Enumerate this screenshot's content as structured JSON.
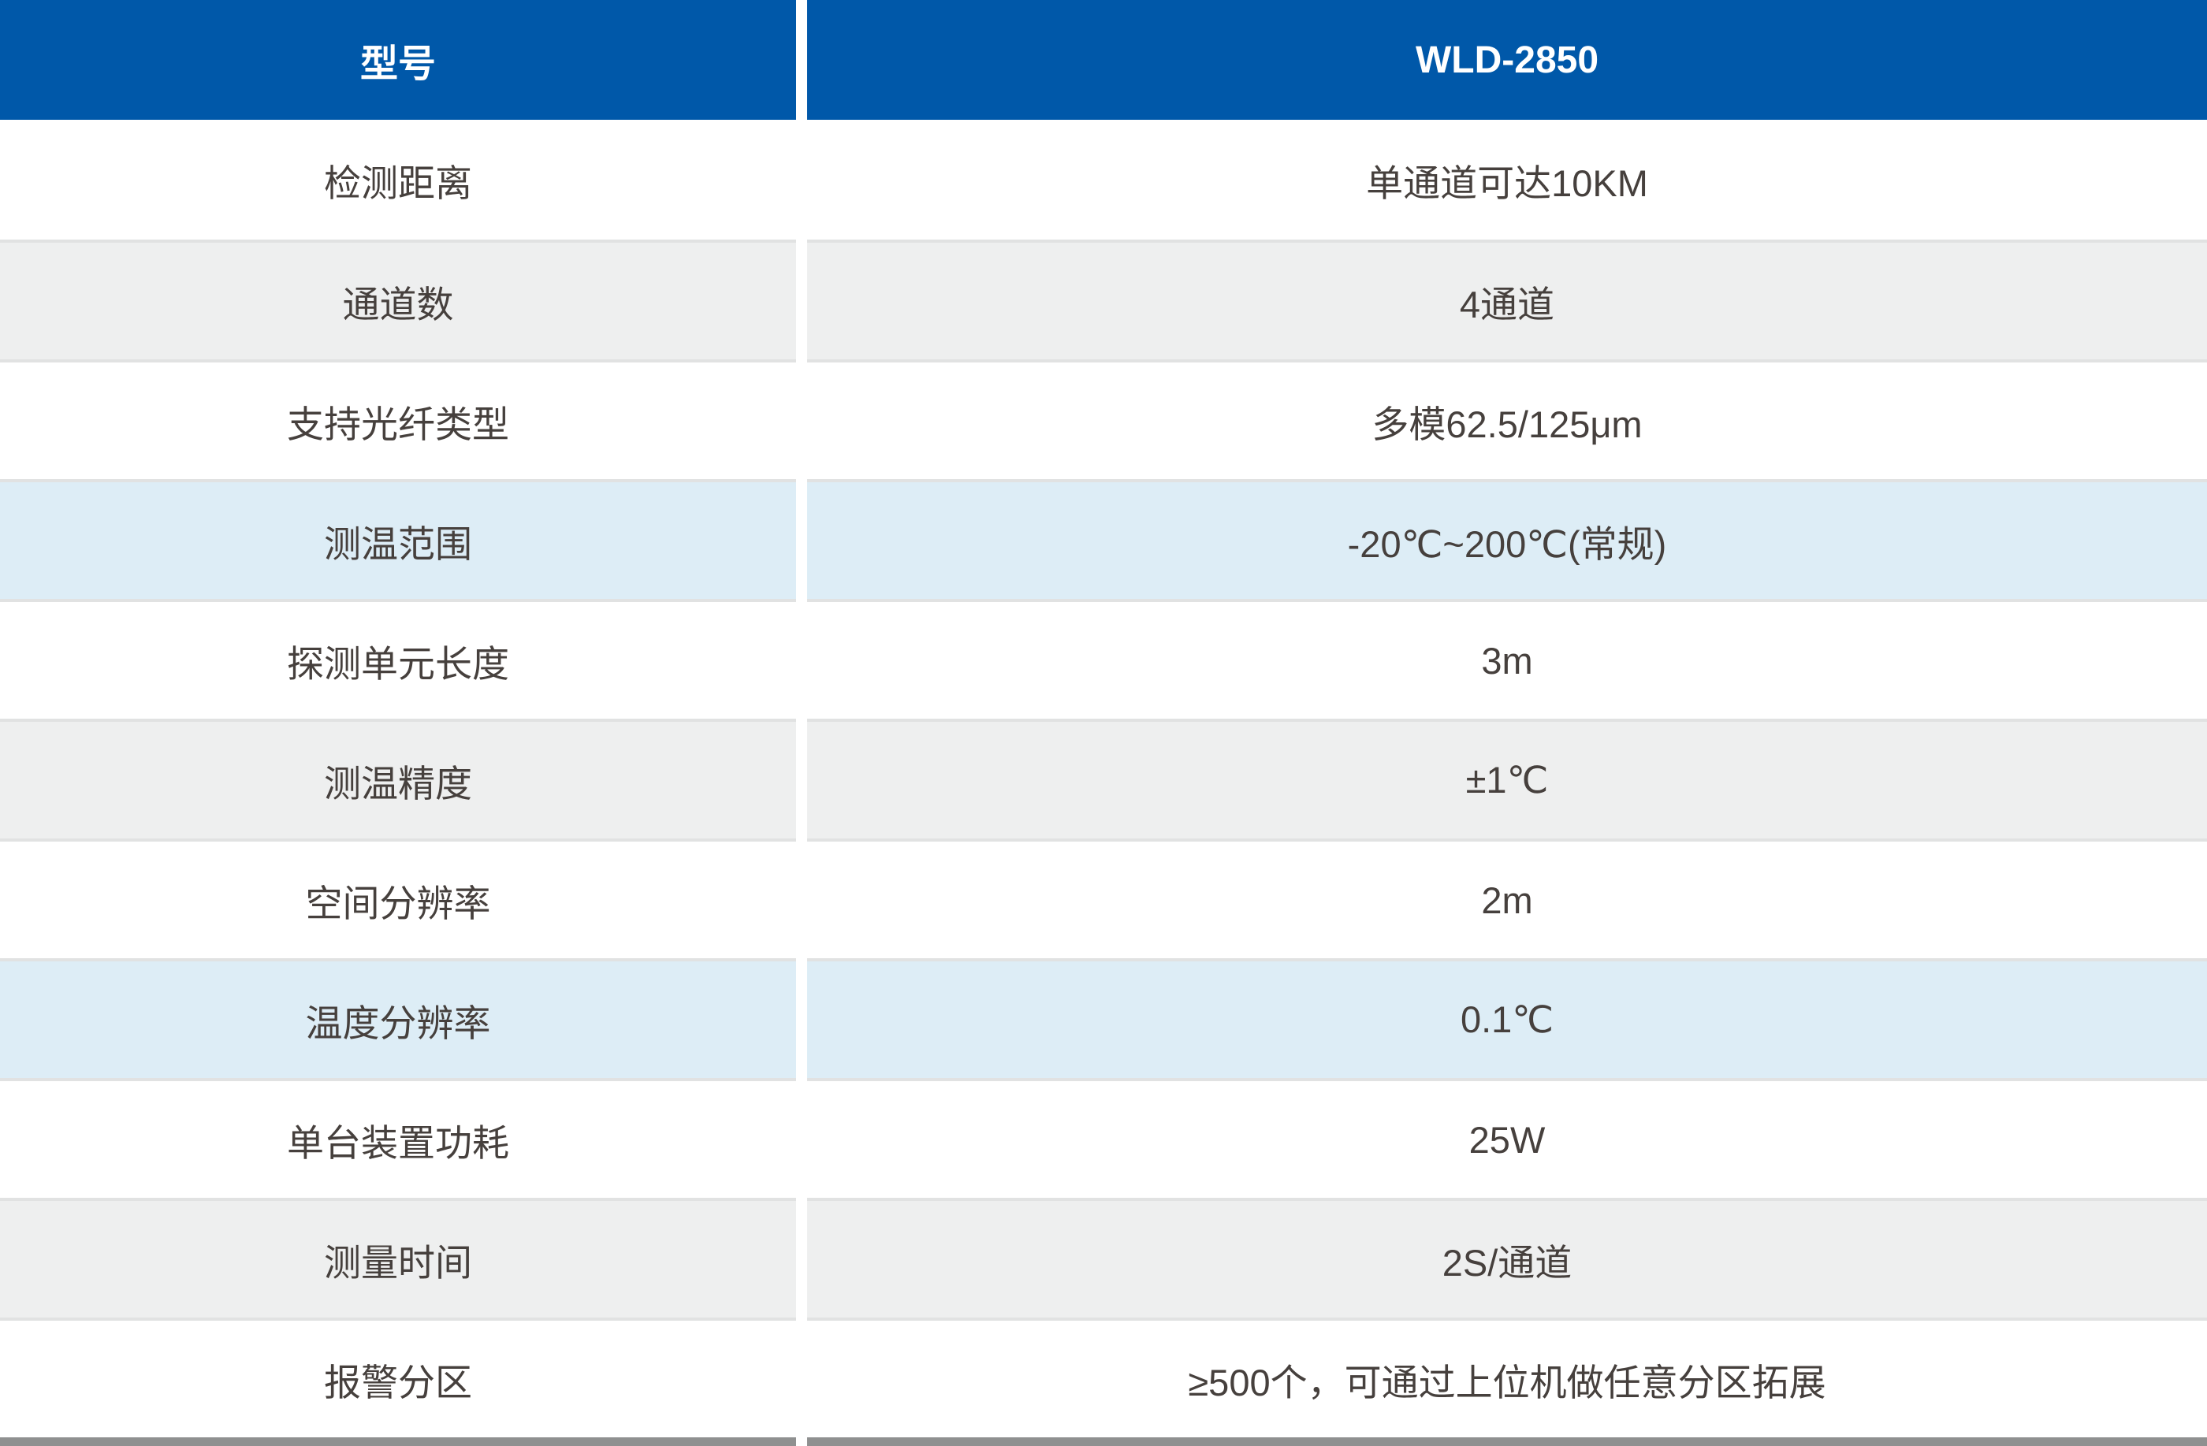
{
  "table": {
    "header": {
      "col1": "型号",
      "col2": "WLD-2850"
    },
    "rows": [
      {
        "label": "检测距离",
        "value": "单通道可达10KM",
        "variant": "row_white"
      },
      {
        "label": "通道数",
        "value": "4通道",
        "variant": "row_gray"
      },
      {
        "label": "支持光纤类型",
        "value": "多模62.5/125μm",
        "variant": "row_white"
      },
      {
        "label": "测温范围",
        "value": "-20℃~200℃(常规)",
        "variant": "row_blue"
      },
      {
        "label": "探测单元长度",
        "value": "3m",
        "variant": "row_white"
      },
      {
        "label": "测温精度",
        "value": "±1℃",
        "variant": "row_gray"
      },
      {
        "label": "空间分辨率",
        "value": "2m",
        "variant": "row_white"
      },
      {
        "label": "温度分辨率",
        "value": "0.1℃",
        "variant": "row_blue"
      },
      {
        "label": "单台装置功耗",
        "value": "25W",
        "variant": "row_white"
      },
      {
        "label": "测量时间",
        "value": "2S/通道",
        "variant": "row_gray"
      },
      {
        "label": "报警分区",
        "value": "≥500个，可通过上位机做任意分区拓展",
        "variant": "row_white"
      }
    ]
  },
  "colors": {
    "header_bg": "#0058a9",
    "header_text": "#ffffff",
    "body_text": "#46403d",
    "row_white": "#ffffff",
    "row_gray": "#eeefef",
    "row_blue": "#ddedf6",
    "divider": "#ffffff",
    "separator": "#e1e2e2",
    "bottom_bar": "#8f9090"
  }
}
